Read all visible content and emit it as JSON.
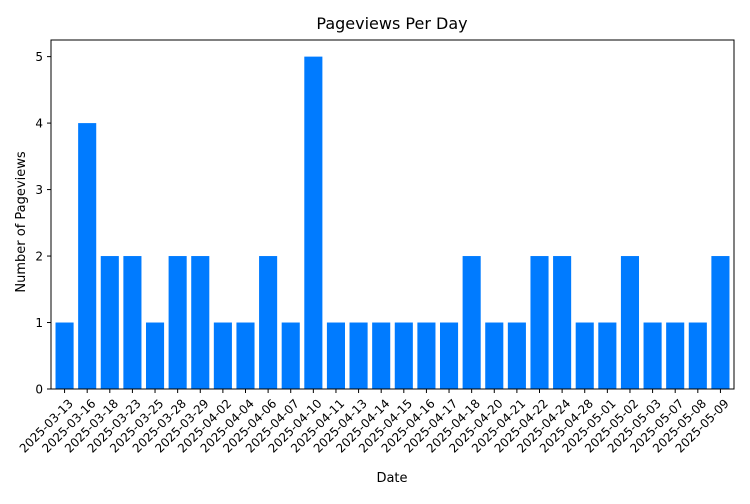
{
  "chart_data": {
    "type": "bar",
    "title": "Pageviews Per Day",
    "xlabel": "Date",
    "ylabel": "Number of Pageviews",
    "ylim": [
      0,
      5.25
    ],
    "yticks": [
      0,
      1,
      2,
      3,
      4,
      5
    ],
    "grid": false,
    "bar_color": "#007bff",
    "categories": [
      "2025-03-13",
      "2025-03-16",
      "2025-03-18",
      "2025-03-23",
      "2025-03-25",
      "2025-03-28",
      "2025-03-29",
      "2025-04-02",
      "2025-04-04",
      "2025-04-06",
      "2025-04-07",
      "2025-04-10",
      "2025-04-11",
      "2025-04-13",
      "2025-04-14",
      "2025-04-15",
      "2025-04-16",
      "2025-04-17",
      "2025-04-18",
      "2025-04-20",
      "2025-04-21",
      "2025-04-22",
      "2025-04-24",
      "2025-04-28",
      "2025-05-01",
      "2025-05-02",
      "2025-05-03",
      "2025-05-07",
      "2025-05-08",
      "2025-05-09"
    ],
    "values": [
      1,
      4,
      2,
      2,
      1,
      2,
      2,
      1,
      1,
      2,
      1,
      5,
      1,
      1,
      1,
      1,
      1,
      1,
      2,
      1,
      1,
      2,
      2,
      1,
      1,
      2,
      1,
      1,
      1,
      2
    ]
  }
}
